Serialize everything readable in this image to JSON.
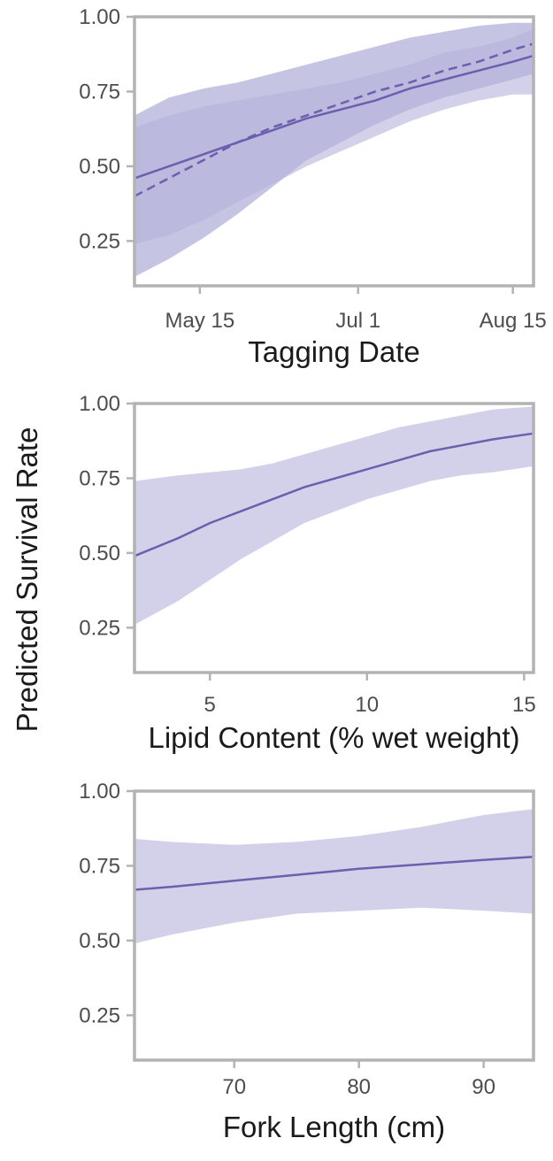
{
  "figure": {
    "ylabel": "Predicted Survival Rate",
    "colors": {
      "line": "#6b5fae",
      "band_inner": "#b3b0d9",
      "band_outer": "#d3d1ea",
      "frame": "#b3b3b3",
      "tick_text": "#4d4d4d"
    }
  },
  "chart_data": [
    {
      "type": "line",
      "xlabel": "Tagging Date",
      "xlim": [
        0,
        116
      ],
      "ylim": [
        0.1,
        1.0
      ],
      "yticks": [
        0.25,
        0.5,
        0.75,
        1.0
      ],
      "ytick_labels": [
        "0.25",
        "0.50",
        "0.75",
        "1.00"
      ],
      "xticks": [
        19,
        65,
        110
      ],
      "xtick_labels": [
        "May 15",
        "Jul 1",
        "Aug 15"
      ],
      "x": [
        0,
        10,
        20,
        30,
        40,
        50,
        60,
        70,
        80,
        90,
        100,
        110,
        116
      ],
      "series": [
        {
          "style": "solid",
          "values": [
            0.46,
            0.5,
            0.54,
            0.58,
            0.62,
            0.66,
            0.69,
            0.72,
            0.76,
            0.79,
            0.82,
            0.85,
            0.87
          ],
          "band_lower": [
            0.13,
            0.19,
            0.26,
            0.34,
            0.43,
            0.52,
            0.58,
            0.64,
            0.69,
            0.73,
            0.76,
            0.79,
            0.81
          ],
          "band_upper": [
            0.67,
            0.73,
            0.76,
            0.78,
            0.81,
            0.84,
            0.87,
            0.9,
            0.93,
            0.95,
            0.97,
            0.98,
            0.98
          ]
        },
        {
          "style": "dashed",
          "values": [
            0.4,
            0.46,
            0.52,
            0.58,
            0.63,
            0.67,
            0.71,
            0.75,
            0.78,
            0.82,
            0.85,
            0.89,
            0.91
          ],
          "band_lower": [
            0.24,
            0.27,
            0.32,
            0.38,
            0.44,
            0.5,
            0.55,
            0.6,
            0.65,
            0.69,
            0.72,
            0.74,
            0.74
          ],
          "band_upper": [
            0.63,
            0.67,
            0.7,
            0.72,
            0.74,
            0.76,
            0.78,
            0.81,
            0.84,
            0.88,
            0.9,
            0.93,
            0.96
          ]
        }
      ]
    },
    {
      "type": "line",
      "xlabel": "Lipid Content (% wet weight)",
      "xlim": [
        2.6,
        15.3
      ],
      "ylim": [
        0.1,
        1.0
      ],
      "yticks": [
        0.25,
        0.5,
        0.75,
        1.0
      ],
      "ytick_labels": [
        "0.25",
        "0.50",
        "0.75",
        "1.00"
      ],
      "xticks": [
        5,
        10,
        15
      ],
      "xtick_labels": [
        "5",
        "10",
        "15"
      ],
      "x": [
        2.6,
        4,
        5,
        6,
        7,
        8,
        9,
        10,
        11,
        12,
        13,
        14,
        15.3
      ],
      "series": [
        {
          "style": "solid",
          "values": [
            0.49,
            0.55,
            0.6,
            0.64,
            0.68,
            0.72,
            0.75,
            0.78,
            0.81,
            0.84,
            0.86,
            0.88,
            0.9
          ],
          "band_lower": [
            0.26,
            0.34,
            0.41,
            0.48,
            0.54,
            0.6,
            0.64,
            0.68,
            0.71,
            0.74,
            0.76,
            0.77,
            0.79
          ],
          "band_upper": [
            0.74,
            0.76,
            0.77,
            0.78,
            0.8,
            0.83,
            0.86,
            0.89,
            0.92,
            0.94,
            0.96,
            0.98,
            0.99
          ]
        }
      ]
    },
    {
      "type": "line",
      "xlabel": "Fork Length (cm)",
      "xlim": [
        62,
        94
      ],
      "ylim": [
        0.1,
        1.0
      ],
      "yticks": [
        0.25,
        0.5,
        0.75,
        1.0
      ],
      "ytick_labels": [
        "0.25",
        "0.50",
        "0.75",
        "1.00"
      ],
      "xticks": [
        70,
        80,
        90
      ],
      "xtick_labels": [
        "70",
        "80",
        "90"
      ],
      "x": [
        62,
        65,
        70,
        75,
        80,
        85,
        90,
        94
      ],
      "series": [
        {
          "style": "solid",
          "values": [
            0.67,
            0.68,
            0.7,
            0.72,
            0.74,
            0.755,
            0.77,
            0.78
          ],
          "band_lower": [
            0.49,
            0.52,
            0.56,
            0.59,
            0.6,
            0.61,
            0.6,
            0.59
          ],
          "band_upper": [
            0.84,
            0.83,
            0.82,
            0.83,
            0.85,
            0.88,
            0.92,
            0.94
          ]
        }
      ]
    }
  ]
}
